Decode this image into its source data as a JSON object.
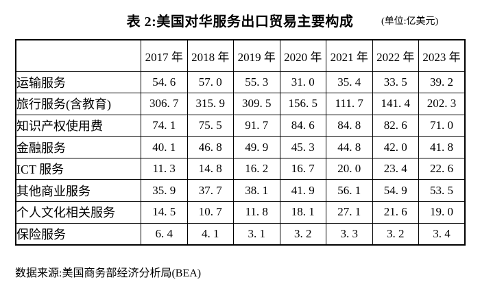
{
  "page": {
    "title": "表 2:美国对华服务出口贸易主要构成",
    "unit_note": "(单位:亿美元)",
    "source_note": "数据来源:美国商务部经济分析局(BEA)"
  },
  "table": {
    "corner_label": "",
    "columns": [
      "2017 年",
      "2018 年",
      "2019 年",
      "2020 年",
      "2021 年",
      "2022 年",
      "2023 年"
    ],
    "rows": [
      {
        "label": "运输服务",
        "values": [
          54.6,
          57.0,
          55.3,
          31.0,
          35.4,
          33.5,
          39.2
        ]
      },
      {
        "label": "旅行服务(含教育)",
        "values": [
          306.7,
          315.9,
          309.5,
          156.5,
          111.7,
          141.4,
          202.3
        ]
      },
      {
        "label": "知识产权使用费",
        "values": [
          74.1,
          75.5,
          91.7,
          84.6,
          84.8,
          82.6,
          71.0
        ]
      },
      {
        "label": "金融服务",
        "values": [
          40.1,
          46.8,
          49.9,
          45.3,
          44.8,
          42.0,
          41.8
        ]
      },
      {
        "label": "ICT 服务",
        "values": [
          11.3,
          14.8,
          16.2,
          16.7,
          20.0,
          23.4,
          22.6
        ]
      },
      {
        "label": "其他商业服务",
        "values": [
          35.9,
          37.7,
          38.1,
          41.9,
          56.1,
          54.9,
          53.5
        ]
      },
      {
        "label": "个人文化相关服务",
        "values": [
          14.5,
          10.7,
          11.8,
          18.1,
          27.1,
          21.6,
          19.0
        ]
      },
      {
        "label": "保险服务",
        "values": [
          6.4,
          4.1,
          3.1,
          3.2,
          3.3,
          3.2,
          3.4
        ]
      }
    ]
  }
}
